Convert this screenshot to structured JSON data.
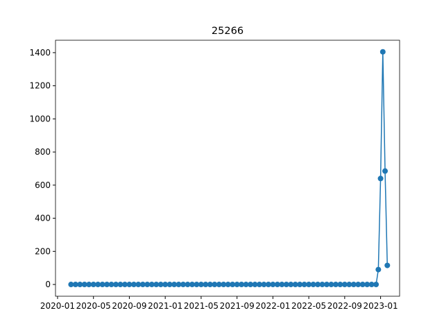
{
  "chart_data": {
    "type": "line",
    "title": "25266",
    "x": [
      1.5,
      2,
      2.5,
      3,
      3.5,
      4,
      4.5,
      5,
      5.5,
      6,
      6.5,
      7,
      7.5,
      8,
      8.5,
      9,
      9.5,
      10,
      10.5,
      11,
      11.5,
      12,
      12.5,
      13,
      13.5,
      14,
      14.5,
      15,
      15.5,
      16,
      16.5,
      17,
      17.5,
      18,
      18.5,
      19,
      19.5,
      20,
      20.5,
      21,
      21.5,
      22,
      22.5,
      23,
      23.5,
      24,
      24.5,
      25,
      25.5,
      26,
      26.5,
      27,
      27.5,
      28,
      28.5,
      29,
      29.5,
      30,
      30.5,
      31,
      31.5,
      32,
      32.5,
      33,
      33.5,
      34,
      34.5,
      35,
      35.5,
      35.75,
      36,
      36.25,
      36.5,
      36.75
    ],
    "series": [
      {
        "color": "#1f77b4",
        "values": [
          0,
          0,
          0,
          0,
          0,
          0,
          0,
          0,
          0,
          0,
          0,
          0,
          0,
          0,
          0,
          0,
          0,
          0,
          0,
          0,
          0,
          0,
          0,
          0,
          0,
          0,
          0,
          0,
          0,
          0,
          0,
          0,
          0,
          0,
          0,
          0,
          0,
          0,
          0,
          0,
          0,
          0,
          0,
          0,
          0,
          0,
          0,
          0,
          0,
          0,
          0,
          0,
          0,
          0,
          0,
          0,
          0,
          0,
          0,
          0,
          0,
          0,
          0,
          0,
          0,
          0,
          0,
          0,
          0,
          90,
          640,
          1405,
          685,
          115
        ]
      }
    ],
    "xlim": [
      -0.23,
      38.12
    ],
    "xticks": [
      {
        "value": 0,
        "label": "2020-01"
      },
      {
        "value": 4,
        "label": "2020-05"
      },
      {
        "value": 8,
        "label": "2020-09"
      },
      {
        "value": 12,
        "label": "2021-01"
      },
      {
        "value": 16,
        "label": "2021-05"
      },
      {
        "value": 20,
        "label": "2021-09"
      },
      {
        "value": 24,
        "label": "2022-01"
      },
      {
        "value": 28,
        "label": "2022-05"
      },
      {
        "value": 32,
        "label": "2022-09"
      },
      {
        "value": 36,
        "label": "2023-01"
      }
    ],
    "ylim": [
      -71,
      1475
    ],
    "yticks": [
      0,
      200,
      400,
      600,
      800,
      1000,
      1200,
      1400
    ]
  }
}
